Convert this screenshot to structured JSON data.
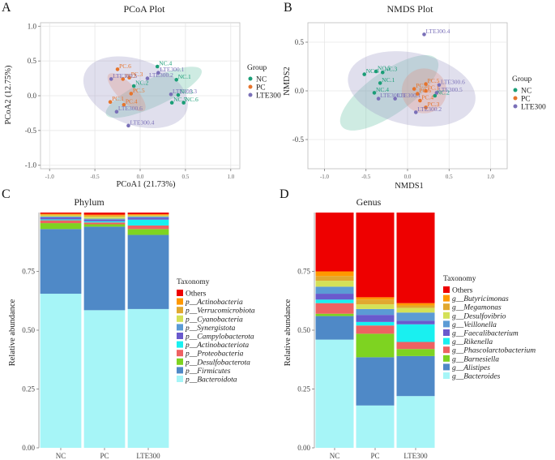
{
  "colors": {
    "NC": "#1b9e77",
    "PC": "#e6742c",
    "LTE300": "#7a70b8",
    "ellipse_NC": "#66c2a5",
    "ellipse_PC": "#fc8d62",
    "ellipse_LTE300": "#9e9ac8",
    "grid": "#e6e6e6",
    "panel_border": "#bbbbbb"
  },
  "panels": {
    "A": {
      "letter": "A"
    },
    "B": {
      "letter": "B"
    },
    "C": {
      "letter": "C"
    },
    "D": {
      "letter": "D"
    }
  },
  "chart_data": [
    {
      "id": "pcoa",
      "type": "scatter",
      "title": "PCoA Plot",
      "xlabel": "PCoA1 (21.73%)",
      "ylabel": "PCoA2 (12.75%)",
      "xlim": [
        -1.1,
        1.1
      ],
      "ylim": [
        -1.05,
        1.05
      ],
      "xticks": [
        -1.0,
        -0.5,
        0.0,
        0.5,
        1.0
      ],
      "yticks": [
        -1.0,
        -0.5,
        0.0,
        0.5,
        1.0
      ],
      "xticklabels": [
        "-1.0",
        "-0.5",
        "0.0",
        "0.5",
        "1.0"
      ],
      "yticklabels": [
        "-1.0",
        "-0.5",
        "0.0",
        "0.5",
        "1.0"
      ],
      "legend_title": "Group",
      "legend": [
        "NC",
        "PC",
        "LTE300"
      ],
      "legend_position": "right",
      "ellipses": [
        {
          "group": "NC",
          "cx": 0.15,
          "cy": 0.05,
          "rx": 0.58,
          "ry": 0.2,
          "angle_deg": -25
        },
        {
          "group": "PC",
          "cx": -0.15,
          "cy": 0.05,
          "rx": 0.28,
          "ry": 0.13,
          "angle_deg": 45
        },
        {
          "group": "LTE300",
          "cx": -0.05,
          "cy": 0.05,
          "rx": 0.6,
          "ry": 0.47,
          "angle_deg": 20
        }
      ],
      "points": [
        {
          "group": "NC",
          "label": "NC.1",
          "x": 0.4,
          "y": 0.23
        },
        {
          "group": "NC",
          "label": "NC.2",
          "x": -0.07,
          "y": 0.14
        },
        {
          "group": "NC",
          "label": "NC.3",
          "x": 0.42,
          "y": 0.01
        },
        {
          "group": "NC",
          "label": "NC.4",
          "x": 0.19,
          "y": 0.42
        },
        {
          "group": "NC",
          "label": "NC.5",
          "x": 0.35,
          "y": -0.1
        },
        {
          "group": "NC",
          "label": "NC.6",
          "x": 0.48,
          "y": -0.1
        },
        {
          "group": "PC",
          "label": "PC.1",
          "x": -0.33,
          "y": -0.09
        },
        {
          "group": "PC",
          "label": "PC.2",
          "x": -0.19,
          "y": 0.24
        },
        {
          "group": "PC",
          "label": "PC.3",
          "x": -0.12,
          "y": 0.26
        },
        {
          "group": "PC",
          "label": "PC.4",
          "x": -0.18,
          "y": -0.13
        },
        {
          "group": "PC",
          "label": "PC.5",
          "x": -0.1,
          "y": 0.03
        },
        {
          "group": "PC",
          "label": "PC.6",
          "x": -0.25,
          "y": 0.38
        },
        {
          "group": "LTE300",
          "label": "LTE300.1",
          "x": 0.2,
          "y": 0.33
        },
        {
          "group": "LTE300",
          "label": "LTE300.2",
          "x": 0.08,
          "y": 0.25
        },
        {
          "group": "LTE300",
          "label": "LTE300.3",
          "x": 0.34,
          "y": 0.02
        },
        {
          "group": "LTE300",
          "label": "LTE300.4",
          "x": -0.13,
          "y": -0.43
        },
        {
          "group": "LTE300",
          "label": "LTE300.5",
          "x": -0.32,
          "y": 0.24
        },
        {
          "group": "LTE300",
          "label": "LTE300.6",
          "x": -0.26,
          "y": -0.23
        }
      ]
    },
    {
      "id": "nmds",
      "type": "scatter",
      "title": "NMDS Plot",
      "xlabel": "NMDS1",
      "ylabel": "NMDS2",
      "xlim": [
        -1.2,
        1.2
      ],
      "ylim": [
        -0.8,
        0.7
      ],
      "xticks": [
        -1.0,
        -0.5,
        0.0,
        0.5,
        1.0
      ],
      "yticks": [
        -0.5,
        0.0,
        0.5
      ],
      "xticklabels": [
        "-1.0",
        "-0.5",
        "0.0",
        "0.5",
        "1.0"
      ],
      "yticklabels": [
        "-0.5",
        "0.0",
        "0.5"
      ],
      "legend_title": "Group",
      "legend": [
        "NC",
        "PC",
        "LTE300"
      ],
      "legend_position": "right",
      "ellipses": [
        {
          "group": "NC",
          "cx": -0.22,
          "cy": -0.02,
          "rx": 0.7,
          "ry": 0.22,
          "angle_deg": -35
        },
        {
          "group": "PC",
          "cx": 0.2,
          "cy": 0.0,
          "rx": 0.27,
          "ry": 0.23,
          "angle_deg": 55
        },
        {
          "group": "LTE300",
          "cx": 0.05,
          "cy": 0.02,
          "rx": 0.78,
          "ry": 0.37,
          "angle_deg": 12
        }
      ],
      "points": [
        {
          "group": "NC",
          "label": "NC.1",
          "x": -0.33,
          "y": 0.08
        },
        {
          "group": "NC",
          "label": "NC.2",
          "x": 0.33,
          "y": -0.05
        },
        {
          "group": "NC",
          "label": "NC.3",
          "x": -0.3,
          "y": 0.19
        },
        {
          "group": "NC",
          "label": "NC.4",
          "x": -0.4,
          "y": -0.02
        },
        {
          "group": "NC",
          "label": "NC.5",
          "x": -0.38,
          "y": 0.2
        },
        {
          "group": "NC",
          "label": "NC.6",
          "x": -0.52,
          "y": 0.17
        },
        {
          "group": "PC",
          "label": "PC.1",
          "x": 0.22,
          "y": 0.0
        },
        {
          "group": "PC",
          "label": "PC.2",
          "x": 0.08,
          "y": 0.02
        },
        {
          "group": "PC",
          "label": "PC.3",
          "x": 0.22,
          "y": -0.17
        },
        {
          "group": "PC",
          "label": "PC.4",
          "x": 0.15,
          "y": -0.1
        },
        {
          "group": "PC",
          "label": "PC.5",
          "x": 0.22,
          "y": 0.07
        },
        {
          "group": "PC",
          "label": "PC.6",
          "x": 0.12,
          "y": -0.03
        },
        {
          "group": "LTE300",
          "label": "LTE300.1",
          "x": -0.15,
          "y": -0.08
        },
        {
          "group": "LTE300",
          "label": "LTE300.2",
          "x": 0.1,
          "y": -0.22
        },
        {
          "group": "LTE300",
          "label": "LTE300.3",
          "x": -0.35,
          "y": -0.08
        },
        {
          "group": "LTE300",
          "label": "LTE300.4",
          "x": 0.2,
          "y": 0.58
        },
        {
          "group": "LTE300",
          "label": "LTE300.5",
          "x": 0.35,
          "y": -0.02
        },
        {
          "group": "LTE300",
          "label": "LTE300.6",
          "x": 0.38,
          "y": 0.06
        }
      ]
    },
    {
      "id": "phylum",
      "type": "bar",
      "stacked": true,
      "title": "Phylum",
      "xlabel": "",
      "ylabel": "Relative abundance",
      "ylim": [
        0,
        1.0
      ],
      "yticks": [
        0,
        0.25,
        0.5,
        0.75
      ],
      "yticklabels": [
        "0.00",
        "0.25",
        "0.50",
        "0.75"
      ],
      "categories": [
        "NC",
        "PC",
        "LTE300"
      ],
      "legend_title": "Taxonomy",
      "legend_position": "right",
      "series": [
        {
          "name": "p__Bacteroidota",
          "color": "#a6f5f7",
          "values": [
            0.655,
            0.585,
            0.59
          ]
        },
        {
          "name": "p__Firmicutes",
          "color": "#4f89c7",
          "values": [
            0.275,
            0.355,
            0.315
          ]
        },
        {
          "name": "p__Desulfobacterota",
          "color": "#7ed321",
          "values": [
            0.025,
            0.01,
            0.025
          ]
        },
        {
          "name": "p__Proteobacteria",
          "color": "#ee6262",
          "values": [
            0.012,
            0.008,
            0.015
          ]
        },
        {
          "name": "p__Actinobacteriota",
          "color": "#19f0f0",
          "values": [
            0.004,
            0.005,
            0.025
          ]
        },
        {
          "name": "p__Campylobacterota",
          "color": "#6a5acd",
          "values": [
            0.008,
            0.007,
            0.008
          ]
        },
        {
          "name": "p__Synergistota",
          "color": "#5b9bd5",
          "values": [
            0.004,
            0.004,
            0.005
          ]
        },
        {
          "name": "p__Cyanobacteria",
          "color": "#d4e157",
          "values": [
            0.005,
            0.008,
            0.004
          ]
        },
        {
          "name": "p__Verrucomicrobiota",
          "color": "#e1a82f",
          "values": [
            0.004,
            0.005,
            0.003
          ]
        },
        {
          "name": "p__Actinobacteria",
          "color": "#ff9800",
          "values": [
            0.003,
            0.004,
            0.003
          ]
        },
        {
          "name": "Others",
          "color": "#ee0000",
          "values": [
            0.005,
            0.009,
            0.007
          ]
        }
      ]
    },
    {
      "id": "genus",
      "type": "bar",
      "stacked": true,
      "title": "Genus",
      "xlabel": "",
      "ylabel": "Relative abundance",
      "ylim": [
        0,
        1.0
      ],
      "yticks": [
        0,
        0.25,
        0.5,
        0.75
      ],
      "yticklabels": [
        "0.00",
        "0.25",
        "0.50",
        "0.75"
      ],
      "categories": [
        "NC",
        "PC",
        "LTE300"
      ],
      "legend_title": "Taxonomy",
      "legend_position": "right",
      "series": [
        {
          "name": "g__Bacteroides",
          "color": "#a6f5f7",
          "values": [
            0.46,
            0.18,
            0.22
          ]
        },
        {
          "name": "g__Alistipes",
          "color": "#4f89c7",
          "values": [
            0.1,
            0.205,
            0.17
          ]
        },
        {
          "name": "g__Barnesiella",
          "color": "#7ed321",
          "values": [
            0.01,
            0.1,
            0.03
          ]
        },
        {
          "name": "g__Phascolarctobacterium",
          "color": "#ee6262",
          "values": [
            0.045,
            0.035,
            0.03
          ]
        },
        {
          "name": "g__Rikenella",
          "color": "#19f0f0",
          "values": [
            0.015,
            0.015,
            0.075
          ]
        },
        {
          "name": "g__Faecalibacterium",
          "color": "#6a5acd",
          "values": [
            0.025,
            0.03,
            0.015
          ]
        },
        {
          "name": "g__Veillonella",
          "color": "#5b9bd5",
          "values": [
            0.03,
            0.025,
            0.035
          ]
        },
        {
          "name": "g__Desulfovibrio",
          "color": "#d4e157",
          "values": [
            0.025,
            0.02,
            0.02
          ]
        },
        {
          "name": "g__Megamonas",
          "color": "#e1a82f",
          "values": [
            0.02,
            0.02,
            0.01
          ]
        },
        {
          "name": "g__Butyricimonas",
          "color": "#ff9800",
          "values": [
            0.02,
            0.01,
            0.01
          ]
        },
        {
          "name": "Others",
          "color": "#ee0000",
          "values": [
            0.25,
            0.36,
            0.385
          ]
        }
      ]
    }
  ]
}
